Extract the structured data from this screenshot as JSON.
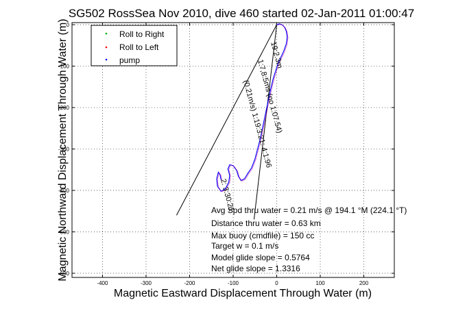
{
  "chart_data": {
    "type": "line",
    "title": "SG502 RossSea Nov 2010, dive 460 started 02-Jan-2011 01:00:47",
    "xlabel": "Magnetic Eastward Displacement Through Water (m)",
    "ylabel": "Magnetic Northward Displacement Through Water (m)",
    "xlim": [
      -470,
      270
    ],
    "ylim": [
      -610,
      5
    ],
    "xticks": [
      -400,
      -300,
      -200,
      -100,
      0,
      100,
      200
    ],
    "xtick_labels": [
      "-400",
      "-300",
      "-200",
      "-100",
      "0",
      "100",
      "200"
    ],
    "yticks": [
      0,
      -100,
      -200,
      -300,
      -400,
      -500,
      -600
    ],
    "ytick_labels": [
      "0",
      "-100",
      "-200",
      "-300",
      "-400",
      "-500",
      "-600"
    ],
    "grid": true,
    "legend_position": "top-left",
    "legend": [
      {
        "label": "Roll to Right",
        "color": "#00aa00",
        "marker": "dot"
      },
      {
        "label": "Roll to Left",
        "color": "#ff0000",
        "marker": "dot"
      },
      {
        "label": "pump",
        "color": "#0000ff",
        "marker": "dot"
      }
    ],
    "series": [
      {
        "name": "pump",
        "color": "#0000ff",
        "x": [
          0,
          6,
          12,
          18,
          22,
          24,
          22,
          16,
          8,
          2,
          -2,
          -8,
          -14,
          -20,
          -26,
          -32,
          -38,
          -44,
          -50,
          -58,
          -66,
          -74,
          -82,
          -88,
          -92,
          -100,
          -108,
          -112,
          -108,
          -110,
          -118,
          -128,
          -136,
          -138,
          -134,
          -130,
          -128
        ],
        "y": [
          0,
          2,
          0,
          -6,
          -16,
          -30,
          -46,
          -64,
          -82,
          -96,
          -110,
          -130,
          -156,
          -186,
          -216,
          -246,
          -276,
          -300,
          -324,
          -346,
          -358,
          -372,
          -376,
          -366,
          -352,
          -340,
          -338,
          -348,
          -364,
          -380,
          -396,
          -402,
          -390,
          -372,
          -356,
          -362,
          -374
        ]
      }
    ],
    "lines": [
      {
        "x": [
          0,
          -230
        ],
        "y": [
          0,
          -460
        ]
      },
      {
        "x": [
          0,
          -52
        ],
        "y": [
          0,
          -470
        ]
      }
    ],
    "track_labels": [
      "19:2.3m",
      "1:7,8:5ms (no 1:07.54)",
      "(0.21m/s) 1:19:3:21: 4:1:96",
      "2: 3:30:21"
    ],
    "annotations": [
      "Avg Spd thru water = 0.21 m/s @ 194.1   °M (224.1 °T)",
      "Distance thru water = 0.63 km",
      "Max buoy (cmdfile) = 150 cc",
      "Target w = 0.1 m/s",
      "Model glide slope = 0.5764",
      "Net glide slope = 1.3316"
    ]
  }
}
